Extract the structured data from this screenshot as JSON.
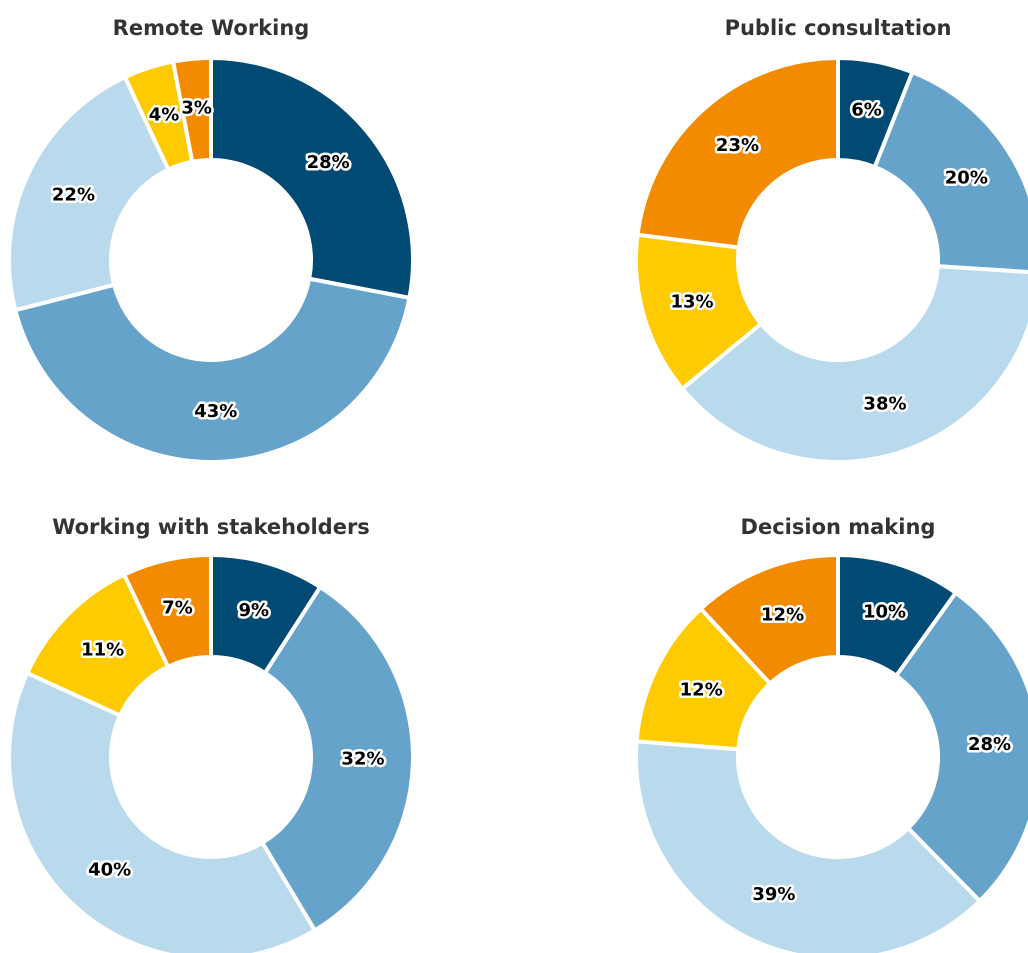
{
  "chart_data": [
    {
      "type": "donut",
      "title": "Remote Working",
      "values": [
        28,
        43,
        22,
        4,
        3
      ],
      "value_labels": [
        "28%",
        "43%",
        "22%",
        "4%",
        "3%"
      ],
      "colors": [
        "#004a73",
        "#65a3cb",
        "#b9d9ec",
        "#fdcb00",
        "#f28b00"
      ]
    },
    {
      "type": "donut",
      "title": "Public consultation",
      "values": [
        6,
        20,
        38,
        13,
        23
      ],
      "value_labels": [
        "6%",
        "20%",
        "38%",
        "13%",
        "23%"
      ],
      "colors": [
        "#004a73",
        "#65a3cb",
        "#b9d9ec",
        "#fdcb00",
        "#f28b00"
      ]
    },
    {
      "type": "donut",
      "title": "Working with stakeholders",
      "values": [
        9,
        32,
        40,
        11,
        7
      ],
      "value_labels": [
        "9%",
        "32%",
        "40%",
        "11%",
        "7%"
      ],
      "colors": [
        "#004a73",
        "#65a3cb",
        "#b9d9ec",
        "#fdcb00",
        "#f28b00"
      ]
    },
    {
      "type": "donut",
      "title": "Decision making",
      "values": [
        10,
        28,
        39,
        12,
        12
      ],
      "value_labels": [
        "10%",
        "28%",
        "39%",
        "12%",
        "12%"
      ],
      "colors": [
        "#004a73",
        "#65a3cb",
        "#b9d9ec",
        "#fdcb00",
        "#f28b00"
      ]
    }
  ]
}
